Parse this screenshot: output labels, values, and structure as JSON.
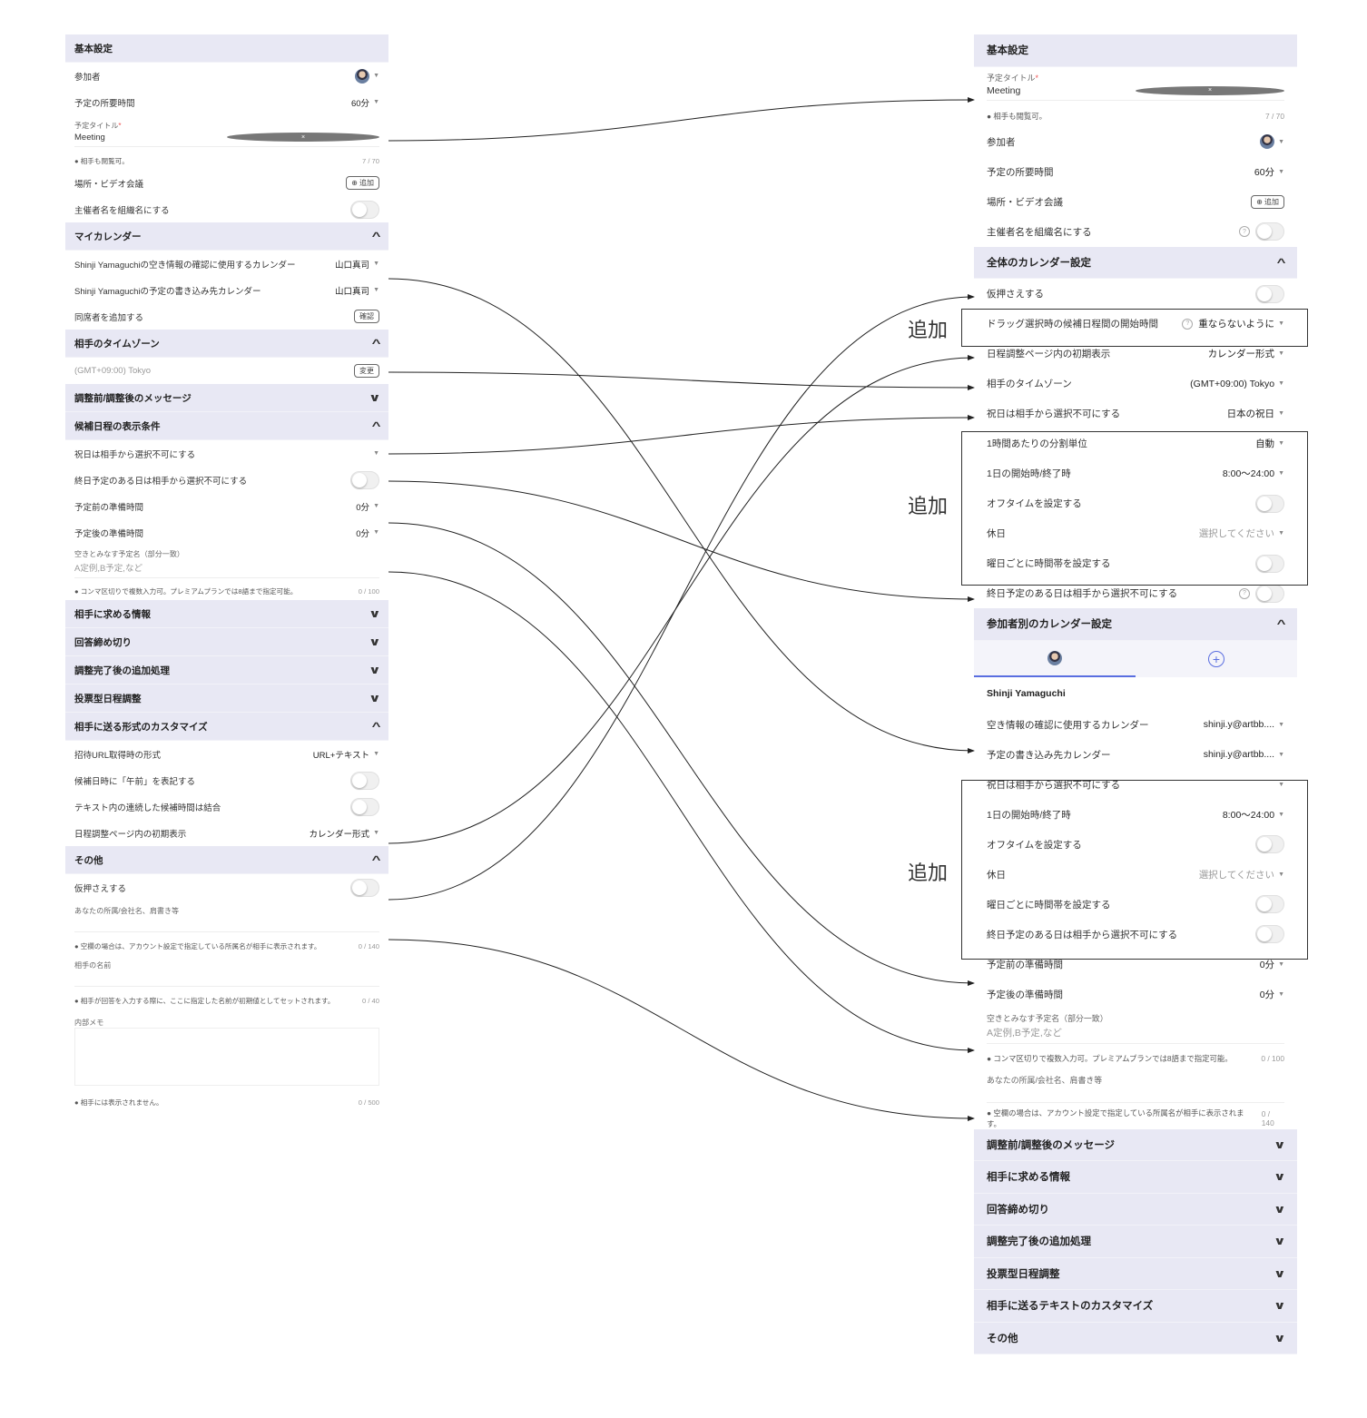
{
  "left": {
    "items": [
      {
        "type": "header",
        "label": "基本設定"
      },
      {
        "type": "row",
        "label": "参加者",
        "avatar": true,
        "caret": true
      },
      {
        "type": "row",
        "label": "予定の所要時間",
        "value": "60分",
        "caret": true
      },
      {
        "type": "field",
        "label": "予定タイトル",
        "required": "*",
        "value": "Meeting",
        "clear": true
      },
      {
        "type": "note",
        "label": "● 相手も閲覧可。",
        "count": "7 / 70"
      },
      {
        "type": "row",
        "label": "場所・ビデオ会議",
        "button": "⊕ 追加"
      },
      {
        "type": "row",
        "label": "主催者名を組織名にする",
        "toggle": true
      },
      {
        "type": "header",
        "label": "マイカレンダー",
        "chevron": "up"
      },
      {
        "type": "row",
        "label": "Shinji Yamaguchiの空き情報の確認に使用するカレンダー",
        "value": "山口真司",
        "caret": true
      },
      {
        "type": "row",
        "label": "Shinji Yamaguchiの予定の書き込み先カレンダー",
        "value": "山口真司",
        "caret": true
      },
      {
        "type": "row",
        "label": "同席者を追加する",
        "button": "確認"
      },
      {
        "type": "header",
        "label": "相手のタイムゾーン",
        "chevron": "up"
      },
      {
        "type": "row",
        "label": "(GMT+09:00) Tokyo",
        "muted": true,
        "button": "変更"
      },
      {
        "type": "header",
        "label": "調整前/調整後のメッセージ",
        "chevron": "down"
      },
      {
        "type": "header",
        "label": "候補日程の表示条件",
        "chevron": "up"
      },
      {
        "type": "row",
        "label": "祝日は相手から選択不可にする",
        "caret": true
      },
      {
        "type": "row",
        "label": "終日予定のある日は相手から選択不可にする",
        "toggle": true
      },
      {
        "type": "row",
        "label": "予定前の準備時間",
        "value": "0分",
        "caret": true
      },
      {
        "type": "row",
        "label": "予定後の準備時間",
        "value": "0分",
        "caret": true
      },
      {
        "type": "field",
        "label": "空きとみなす予定名（部分一致）",
        "placeholder": "A定例,B予定,など"
      },
      {
        "type": "note",
        "label": "● コンマ区切りで複数入力可。プレミアムプランでは8語まで指定可能。",
        "count": "0 / 100"
      },
      {
        "type": "header",
        "label": "相手に求める情報",
        "chevron": "down"
      },
      {
        "type": "header",
        "label": "回答締め切り",
        "chevron": "down"
      },
      {
        "type": "header",
        "label": "調整完了後の追加処理",
        "chevron": "down"
      },
      {
        "type": "header",
        "label": "投票型日程調整",
        "chevron": "down"
      },
      {
        "type": "header",
        "label": "相手に送る形式のカスタマイズ",
        "chevron": "up"
      },
      {
        "type": "row",
        "label": "招待URL取得時の形式",
        "value": "URL+テキスト",
        "caret": true
      },
      {
        "type": "row",
        "label": "候補日時に「午前」を表記する",
        "toggle": true
      },
      {
        "type": "row",
        "label": "テキスト内の連続した候補時間は結合",
        "toggle": true
      },
      {
        "type": "row",
        "label": "日程調整ページ内の初期表示",
        "value": "カレンダー形式",
        "caret": true
      },
      {
        "type": "header",
        "label": "その他",
        "chevron": "up"
      },
      {
        "type": "row",
        "label": "仮押さえする",
        "toggle": true
      },
      {
        "type": "field",
        "label": "あなたの所属/会社名、肩書き等"
      },
      {
        "type": "note",
        "label": "● 空欄の場合は、アカウント設定で指定している所属名が相手に表示されます。",
        "count": "0 / 140"
      },
      {
        "type": "field",
        "label": "相手の名前"
      },
      {
        "type": "note",
        "label": "● 相手が回答を入力する際に、ここに指定した名前が初期値としてセットされます。",
        "count": "0 / 40"
      },
      {
        "type": "textarea",
        "label": "内部メモ"
      },
      {
        "type": "note",
        "label": "● 相手には表示されません。",
        "count": "0 / 500"
      }
    ]
  },
  "right": {
    "items": [
      {
        "type": "header",
        "label": "基本設定"
      },
      {
        "type": "field",
        "label": "予定タイトル",
        "required": "*",
        "value": "Meeting",
        "clear": true
      },
      {
        "type": "note",
        "label": "● 相手も閲覧可。",
        "count": "7 / 70"
      },
      {
        "type": "row",
        "label": "参加者",
        "avatar": true,
        "caret": true
      },
      {
        "type": "row",
        "label": "予定の所要時間",
        "value": "60分",
        "caret": true
      },
      {
        "type": "row",
        "label": "場所・ビデオ会議",
        "button": "⊕ 追加"
      },
      {
        "type": "row",
        "label": "主催者名を組織名にする",
        "help": true,
        "toggle": true
      },
      {
        "type": "header",
        "label": "全体のカレンダー設定",
        "chevron": "up"
      },
      {
        "type": "row",
        "label": "仮押さえする",
        "toggle": true
      },
      {
        "type": "row",
        "label": "ドラッグ選択時の候補日程間の開始時間",
        "help": true,
        "value": "重ならないように",
        "caret": true
      },
      {
        "type": "row",
        "label": "日程調整ページ内の初期表示",
        "value": "カレンダー形式",
        "caret": true
      },
      {
        "type": "row",
        "label": "相手のタイムゾーン",
        "value": "(GMT+09:00) Tokyo",
        "caret": true
      },
      {
        "type": "row",
        "label": "祝日は相手から選択不可にする",
        "value": "日本の祝日",
        "caret": true
      },
      {
        "type": "row",
        "label": "1時間あたりの分割単位",
        "value": "自動",
        "caret": true
      },
      {
        "type": "row",
        "label": "1日の開始時/終了時",
        "value": "8:00〜24:00",
        "caret": true
      },
      {
        "type": "row",
        "label": "オフタイムを設定する",
        "toggle": true
      },
      {
        "type": "row",
        "label": "休日",
        "value": "選択してください",
        "placeholderValue": true,
        "caret": true
      },
      {
        "type": "row",
        "label": "曜日ごとに時間帯を設定する",
        "toggle": true
      },
      {
        "type": "row",
        "label": "終日予定のある日は相手から選択不可にする",
        "help": true,
        "toggle": true
      },
      {
        "type": "header",
        "label": "参加者別のカレンダー設定",
        "chevron": "up"
      },
      {
        "type": "tabs"
      },
      {
        "type": "name",
        "label": "Shinji Yamaguchi"
      },
      {
        "type": "row",
        "label": "空き情報の確認に使用するカレンダー",
        "value": "shinji.y@artbb....",
        "caret": true
      },
      {
        "type": "row",
        "label": "予定の書き込み先カレンダー",
        "value": "shinji.y@artbb....",
        "caret": true
      },
      {
        "type": "row",
        "label": "祝日は相手から選択不可にする",
        "caret": true
      },
      {
        "type": "row",
        "label": "1日の開始時/終了時",
        "value": "8:00〜24:00",
        "caret": true
      },
      {
        "type": "row",
        "label": "オフタイムを設定する",
        "toggle": true
      },
      {
        "type": "row",
        "label": "休日",
        "value": "選択してください",
        "placeholderValue": true,
        "caret": true
      },
      {
        "type": "row",
        "label": "曜日ごとに時間帯を設定する",
        "toggle": true
      },
      {
        "type": "row",
        "label": "終日予定のある日は相手から選択不可にする",
        "toggle": true
      },
      {
        "type": "row",
        "label": "予定前の準備時間",
        "value": "0分",
        "caret": true
      },
      {
        "type": "row",
        "label": "予定後の準備時間",
        "value": "0分",
        "caret": true
      },
      {
        "type": "field",
        "label": "空きとみなす予定名（部分一致）",
        "placeholder": "A定例,B予定,など"
      },
      {
        "type": "note",
        "label": "● コンマ区切りで複数入力可。プレミアムプランでは8語まで指定可能。",
        "count": "0 / 100"
      },
      {
        "type": "field",
        "label": "あなたの所属/会社名、肩書き等"
      },
      {
        "type": "note",
        "label": "● 空欄の場合は、アカウント設定で指定している所属名が相手に表示されます。",
        "count": "0 / 140"
      },
      {
        "type": "header",
        "label": "調整前/調整後のメッセージ",
        "chevron": "down"
      },
      {
        "type": "header",
        "label": "相手に求める情報",
        "chevron": "down"
      },
      {
        "type": "header",
        "label": "回答締め切り",
        "chevron": "down"
      },
      {
        "type": "header",
        "label": "調整完了後の追加処理",
        "chevron": "down"
      },
      {
        "type": "header",
        "label": "投票型日程調整",
        "chevron": "down"
      },
      {
        "type": "header",
        "label": "相手に送るテキストのカスタマイズ",
        "chevron": "down"
      },
      {
        "type": "header",
        "label": "その他",
        "chevron": "down"
      }
    ]
  },
  "annotations": {
    "added_label": "追加"
  }
}
